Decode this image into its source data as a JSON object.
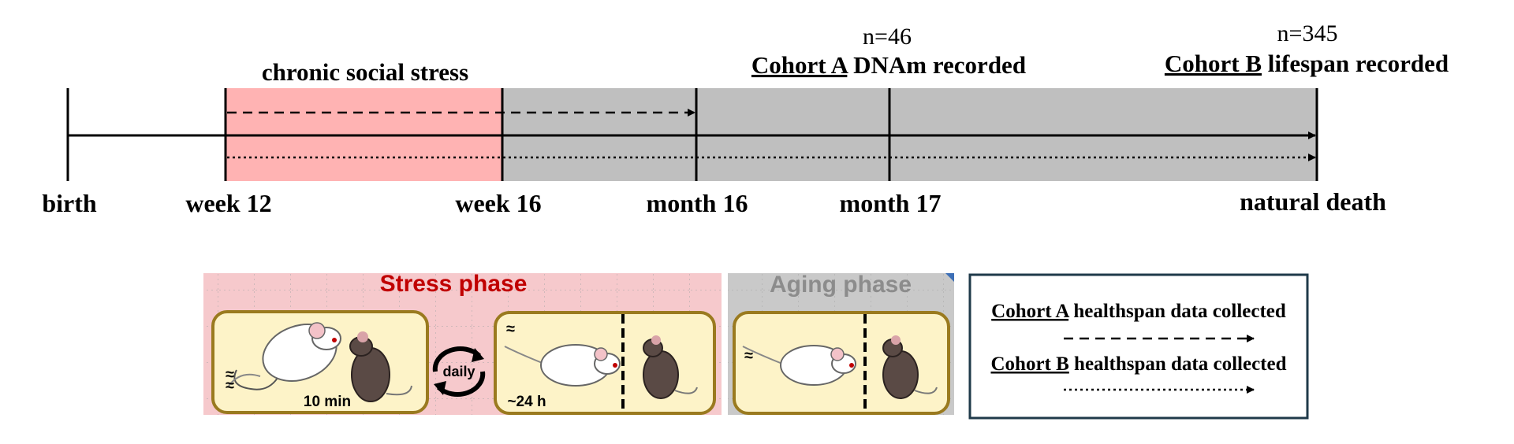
{
  "timeline": {
    "milestones": [
      "birth",
      "week 12",
      "week 16",
      "month 16",
      "month 17",
      "natural death"
    ],
    "stress_period_label": "chronic social stress",
    "cohort_a_n": "n=46",
    "cohort_a_name": "Cohort A",
    "cohort_a_suffix": " DNAm recorded",
    "cohort_b_n": "n=345",
    "cohort_b_name": "Cohort B",
    "cohort_b_suffix": " lifespan recorded"
  },
  "phases": {
    "stress_title": "Stress phase",
    "aging_title": "Aging phase",
    "session_duration": "10 min",
    "daily_label": "daily",
    "housing_duration": "~24 h"
  },
  "legend": {
    "cohort_a_name": "Cohort A",
    "cohort_a_text": " healthspan data collected",
    "cohort_a_line": "dashed",
    "cohort_b_name": "Cohort B",
    "cohort_b_text": " healthspan data collected",
    "cohort_b_line": "dotted"
  },
  "colors": {
    "stress_band": "#ffb3b3",
    "aging_band": "#bfbfbf",
    "stress_panel_bg": "#f6c9cc",
    "aging_panel_bg": "#c9c9c9",
    "stress_title": "#c00000",
    "aging_title": "#8c8c8c",
    "cage_fill": "#fdf3c8",
    "cage_border": "#9a7a1f",
    "legend_border": "#1f3a4a"
  }
}
